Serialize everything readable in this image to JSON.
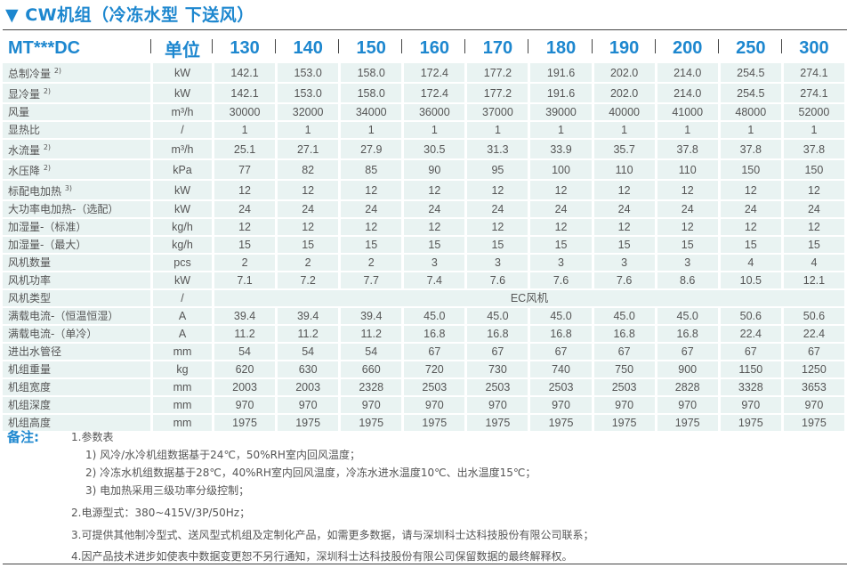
{
  "title": "▼ CW机组（冷冻水型 下送风）",
  "table": {
    "header": [
      "MT***DC",
      "单位",
      "130",
      "140",
      "150",
      "160",
      "170",
      "180",
      "190",
      "200",
      "250",
      "300"
    ],
    "rows": [
      {
        "label": "总制冷量",
        "sup": "2)",
        "unit": "kW",
        "values": [
          "142.1",
          "153.0",
          "158.0",
          "172.4",
          "177.2",
          "191.6",
          "202.0",
          "214.0",
          "254.5",
          "274.1"
        ]
      },
      {
        "label": "显冷量",
        "sup": "2)",
        "unit": "kW",
        "values": [
          "142.1",
          "153.0",
          "158.0",
          "172.4",
          "177.2",
          "191.6",
          "202.0",
          "214.0",
          "254.5",
          "274.1"
        ]
      },
      {
        "label": "风量",
        "unit": "m³/h",
        "values": [
          "30000",
          "32000",
          "34000",
          "36000",
          "37000",
          "39000",
          "40000",
          "41000",
          "48000",
          "52000"
        ]
      },
      {
        "label": "显热比",
        "unit": "/",
        "values": [
          "1",
          "1",
          "1",
          "1",
          "1",
          "1",
          "1",
          "1",
          "1",
          "1"
        ]
      },
      {
        "label": "水流量",
        "sup": "2)",
        "unit": "m³/h",
        "values": [
          "25.1",
          "27.1",
          "27.9",
          "30.5",
          "31.3",
          "33.9",
          "35.7",
          "37.8",
          "37.8",
          "37.8"
        ]
      },
      {
        "label": "水压降",
        "sup": "2)",
        "unit": "kPa",
        "values": [
          "77",
          "82",
          "85",
          "90",
          "95",
          "100",
          "110",
          "110",
          "150",
          "150"
        ]
      },
      {
        "label": "标配电加热",
        "sup": "3)",
        "unit": "kW",
        "values": [
          "12",
          "12",
          "12",
          "12",
          "12",
          "12",
          "12",
          "12",
          "12",
          "12"
        ]
      },
      {
        "label": "大功率电加热-（选配）",
        "unit": "kW",
        "values": [
          "24",
          "24",
          "24",
          "24",
          "24",
          "24",
          "24",
          "24",
          "24",
          "24"
        ]
      },
      {
        "label": "加湿量-（标准）",
        "unit": "kg/h",
        "values": [
          "12",
          "12",
          "12",
          "12",
          "12",
          "12",
          "12",
          "12",
          "12",
          "12"
        ]
      },
      {
        "label": "加湿量-（最大）",
        "unit": "kg/h",
        "values": [
          "15",
          "15",
          "15",
          "15",
          "15",
          "15",
          "15",
          "15",
          "15",
          "15"
        ]
      },
      {
        "label": "风机数量",
        "unit": "pcs",
        "values": [
          "2",
          "2",
          "2",
          "3",
          "3",
          "3",
          "3",
          "3",
          "4",
          "4"
        ]
      },
      {
        "label": "风机功率",
        "unit": "kW",
        "values": [
          "7.1",
          "7.2",
          "7.7",
          "7.4",
          "7.6",
          "7.6",
          "7.6",
          "8.6",
          "10.5",
          "12.1"
        ]
      },
      {
        "label": "风机类型",
        "unit": "/",
        "merged": "EC风机"
      },
      {
        "label": "满载电流-（恒温恒湿）",
        "unit": "A",
        "values": [
          "39.4",
          "39.4",
          "39.4",
          "45.0",
          "45.0",
          "45.0",
          "45.0",
          "45.0",
          "50.6",
          "50.6"
        ]
      },
      {
        "label": "满载电流-（单冷）",
        "unit": "A",
        "values": [
          "11.2",
          "11.2",
          "11.2",
          "16.8",
          "16.8",
          "16.8",
          "16.8",
          "16.8",
          "22.4",
          "22.4"
        ]
      },
      {
        "label": "进出水管径",
        "unit": "mm",
        "values": [
          "54",
          "54",
          "54",
          "67",
          "67",
          "67",
          "67",
          "67",
          "67",
          "67"
        ]
      },
      {
        "label": "机组重量",
        "unit": "kg",
        "values": [
          "620",
          "630",
          "660",
          "720",
          "730",
          "740",
          "750",
          "900",
          "1150",
          "1250"
        ]
      },
      {
        "label": "机组宽度",
        "unit": "mm",
        "values": [
          "2003",
          "2003",
          "2328",
          "2503",
          "2503",
          "2503",
          "2503",
          "2828",
          "3328",
          "3653"
        ]
      },
      {
        "label": "机组深度",
        "unit": "mm",
        "values": [
          "970",
          "970",
          "970",
          "970",
          "970",
          "970",
          "970",
          "970",
          "970",
          "970"
        ]
      },
      {
        "label": "机组高度",
        "unit": "mm",
        "values": [
          "1975",
          "1975",
          "1975",
          "1975",
          "1975",
          "1975",
          "1975",
          "1975",
          "1975",
          "1975"
        ]
      }
    ]
  },
  "notes": {
    "heading": "备注:",
    "lines": [
      "1.参数表",
      "1) 风冷/水冷机组数据基于24℃，50%RH室内回风温度；",
      "2) 冷冻水机组数据基于28℃，40%RH室内回风温度，冷冻水进水温度10℃、出水温度15℃；",
      "3) 电加热采用三级功率分级控制；",
      "2.电源型式：380~415V/3P/50Hz；",
      "3.可提供其他制冷型式、送风型式机组及定制化产品，如需更多数据，请与深圳科士达科技股份有限公司联系；",
      "4.因产品技术进步如使表中数据变更恕不另行通知，深圳科士达科技股份有限公司保留数据的最终解释权。"
    ]
  },
  "colors": {
    "accent": "#1d87cf",
    "cell_bg": "#e9f3f2",
    "text": "#555555"
  }
}
